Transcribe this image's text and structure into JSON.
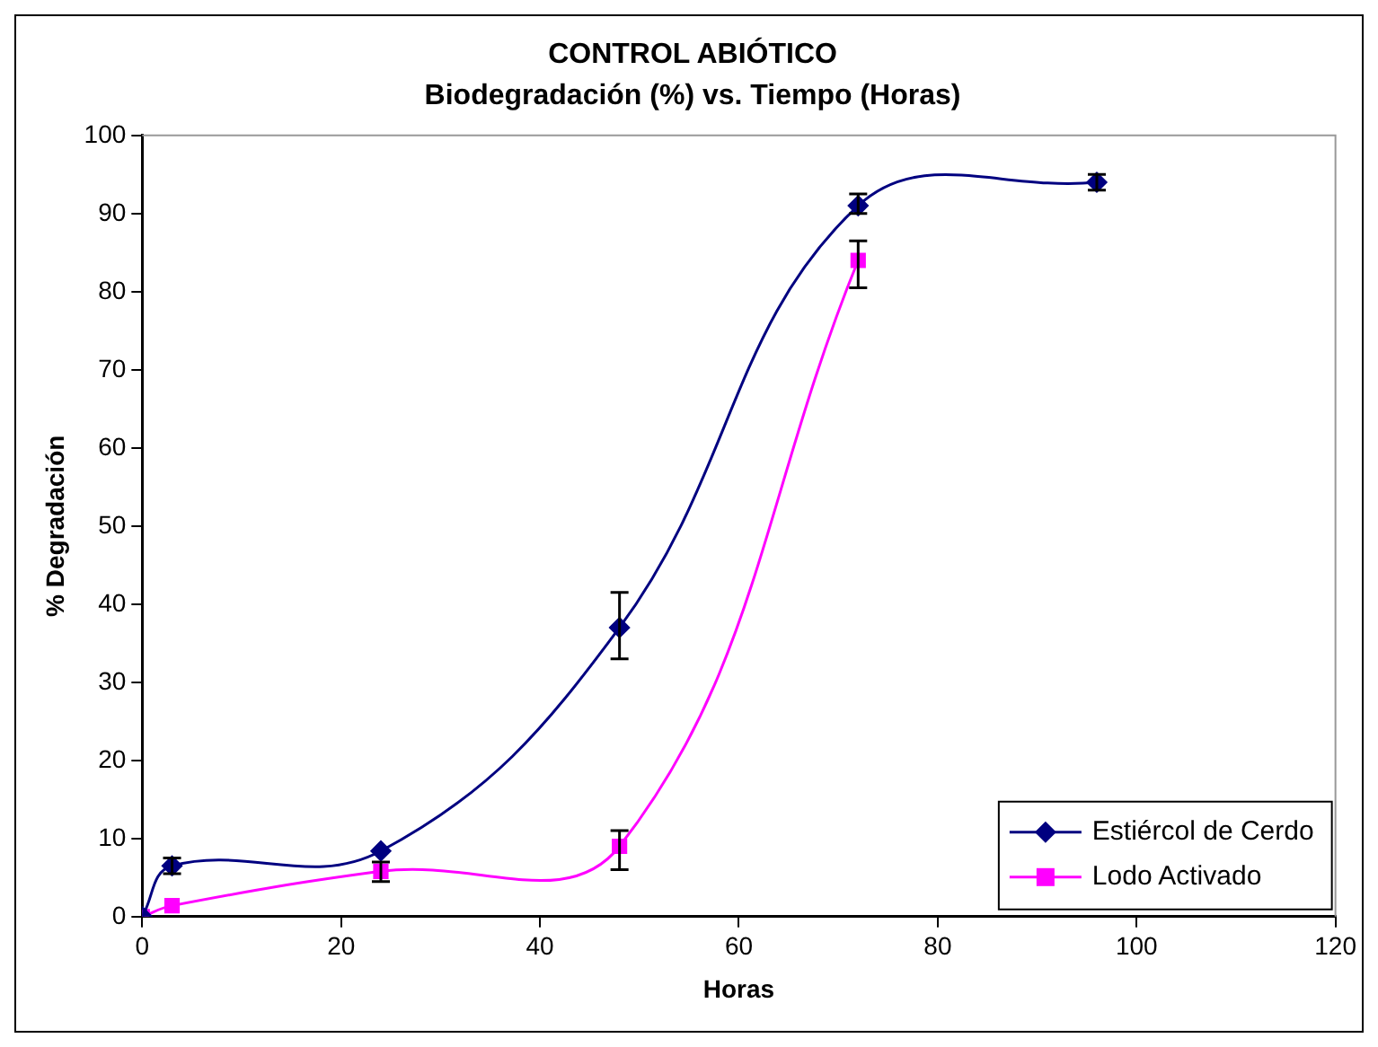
{
  "chart_data": {
    "type": "line",
    "title": "CONTROL ABIÓTICO",
    "subtitle": "Biodegradación (%) vs. Tiempo (Horas)",
    "xlabel": "Horas",
    "ylabel": "% Degradación",
    "xlim": [
      0,
      120
    ],
    "xticks": [
      0,
      20,
      40,
      60,
      80,
      100,
      120
    ],
    "ylim": [
      0,
      100
    ],
    "yticks": [
      0,
      10,
      20,
      30,
      40,
      50,
      60,
      70,
      80,
      90,
      100
    ],
    "grid": false,
    "legend": "bottom right",
    "series": [
      {
        "name": "Estiércol de Cerdo",
        "color": "#000080",
        "marker": "diamond",
        "x": [
          0,
          3,
          24,
          48,
          72,
          96
        ],
        "values": [
          0,
          6.5,
          8.4,
          37,
          91,
          94
        ],
        "errors": [
          null,
          1,
          null,
          [
            33,
            41.5
          ],
          [
            90,
            92.5
          ],
          [
            93,
            95
          ]
        ]
      },
      {
        "name": "Lodo Activado",
        "color": "#ff00ff",
        "marker": "square",
        "x": [
          0,
          3,
          24,
          48,
          72
        ],
        "values": [
          0,
          1.4,
          5.8,
          9,
          84
        ],
        "errors": [
          null,
          null,
          [
            4.5,
            7
          ],
          [
            6,
            11
          ],
          [
            80.5,
            86.5
          ]
        ]
      }
    ]
  }
}
